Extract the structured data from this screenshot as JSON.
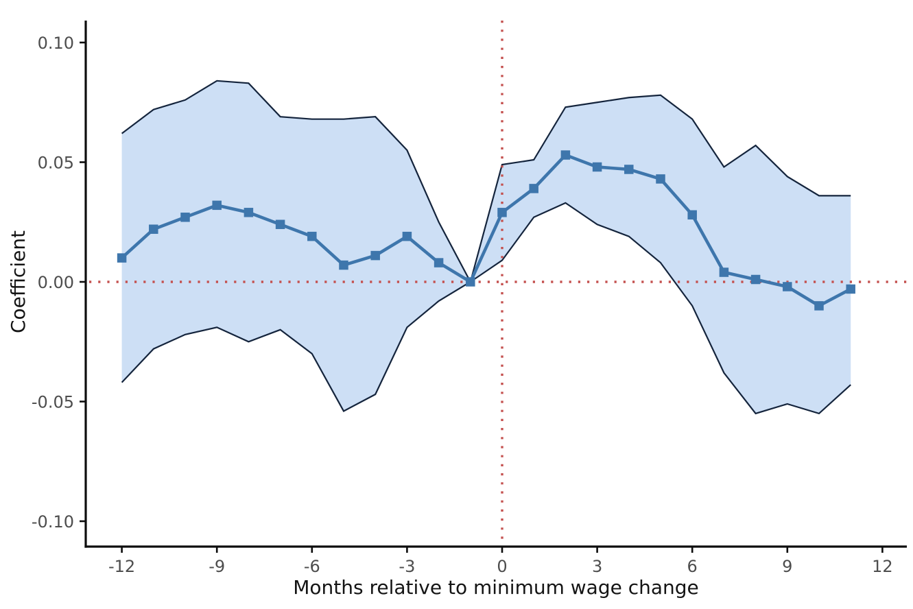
{
  "chart_data": {
    "type": "line",
    "title": "",
    "xlabel": "Months relative to minimum wage change",
    "ylabel": "Coefficient",
    "x": [
      -12,
      -11,
      -10,
      -9,
      -8,
      -7,
      -6,
      -5,
      -4,
      -3,
      -2,
      -1,
      0,
      1,
      2,
      3,
      4,
      5,
      6,
      7,
      8,
      9,
      10,
      11
    ],
    "series": [
      {
        "name": "coefficient",
        "values": [
          0.01,
          0.022,
          0.027,
          0.032,
          0.029,
          0.024,
          0.019,
          0.007,
          0.011,
          0.019,
          0.008,
          0.0,
          0.029,
          0.039,
          0.053,
          0.048,
          0.047,
          0.043,
          0.028,
          0.004,
          0.001,
          -0.002,
          -0.01,
          -0.003
        ]
      },
      {
        "name": "ci_upper",
        "values": [
          0.062,
          0.072,
          0.076,
          0.084,
          0.083,
          0.069,
          0.068,
          0.068,
          0.069,
          0.055,
          0.025,
          0.0,
          0.049,
          0.051,
          0.073,
          0.075,
          0.077,
          0.078,
          0.068,
          0.048,
          0.057,
          0.044,
          0.036,
          0.036
        ]
      },
      {
        "name": "ci_lower",
        "values": [
          -0.042,
          -0.028,
          -0.022,
          -0.019,
          -0.025,
          -0.02,
          -0.03,
          -0.054,
          -0.047,
          -0.019,
          -0.008,
          0.0,
          0.009,
          0.027,
          0.033,
          0.024,
          0.019,
          0.008,
          -0.01,
          -0.038,
          -0.055,
          -0.051,
          -0.055,
          -0.043
        ]
      }
    ],
    "x_ticks": [
      -12,
      -9,
      -6,
      -3,
      0,
      3,
      6,
      9,
      12
    ],
    "y_ticks": [
      0.1,
      0.05,
      0.0,
      -0.05,
      -0.1
    ],
    "y_tick_labels": [
      "0.10",
      "0.05",
      "0.00",
      "-0.05",
      "-0.10"
    ],
    "xlim": [
      -13.1,
      12.7
    ],
    "ylim": [
      -0.111,
      0.109
    ],
    "reference_lines": {
      "horizontal_y": 0,
      "vertical_x": 0
    },
    "grid": false,
    "legend_position": "none",
    "colors": {
      "line": "#3E76AC",
      "marker": "#3E76AC",
      "band_fill": "#CDDFF5",
      "band_edge": "#14243C",
      "reference": "#C4514F",
      "axis": "#0d0d0d",
      "tick_label": "#4d4d4d",
      "axis_title": "#141414"
    }
  }
}
